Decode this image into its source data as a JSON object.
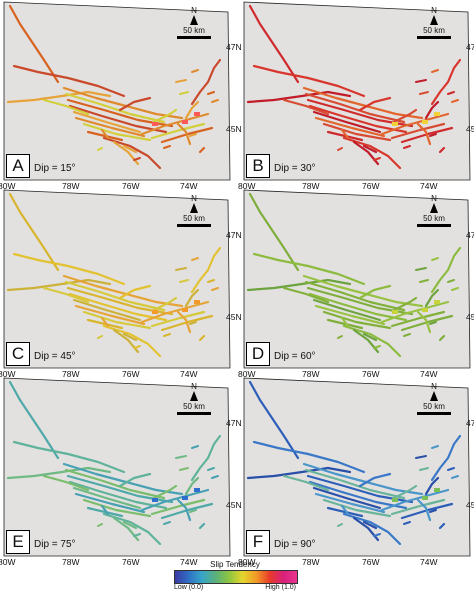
{
  "panels": [
    {
      "letter": "A",
      "dip_label": "Dip = 15°",
      "palette": [
        "#d8621f",
        "#c9492a",
        "#e6a33a",
        "#e08a2e",
        "#d2cf3a"
      ],
      "hotspot": "#ff5a5a"
    },
    {
      "letter": "B",
      "dip_label": "Dip = 30°",
      "palette": [
        "#cf2a2c",
        "#d8362c",
        "#c01c2a",
        "#e2652e",
        "#d84a32"
      ],
      "hotspot": "#f2d23a"
    },
    {
      "letter": "C",
      "dip_label": "Dip = 45°",
      "palette": [
        "#d9b52e",
        "#e2c231",
        "#ccb23a",
        "#e6a336",
        "#d6c93c"
      ],
      "hotspot": "#f39a2a"
    },
    {
      "letter": "D",
      "dip_label": "Dip = 60°",
      "palette": [
        "#7fae3c",
        "#8cbb3f",
        "#6ea43f",
        "#99c243",
        "#82b13a"
      ],
      "hotspot": "#c9d33b"
    },
    {
      "letter": "E",
      "dip_label": "Dip = 75°",
      "palette": [
        "#4ea9a8",
        "#5fb39a",
        "#6fb985",
        "#48a0b3",
        "#7bbd6c"
      ],
      "hotspot": "#2d6ecf"
    },
    {
      "letter": "F",
      "dip_label": "Dip = 90°",
      "palette": [
        "#2d5fb8",
        "#3a78c7",
        "#2a4fa8",
        "#4a95c9",
        "#6ab49b"
      ],
      "hotspot": "#7bbf57"
    }
  ],
  "map": {
    "north_label": "N",
    "scale_label": "50 km",
    "lat_labels": [
      "47N",
      "45N"
    ],
    "lon_labels": [
      "80W",
      "78W",
      "76W",
      "74W"
    ],
    "fill_color": "#e2e1e0"
  },
  "legend": {
    "title": "Slip Tendency",
    "low_label": "Low (0.0)",
    "high_label": "High (1.0)",
    "colors": [
      "#3b3aa3",
      "#2f6fc4",
      "#37a6c9",
      "#5ab07b",
      "#8fc641",
      "#e5d52e",
      "#f19a27",
      "#e83a2a",
      "#d9207a",
      "#e8358f"
    ]
  }
}
